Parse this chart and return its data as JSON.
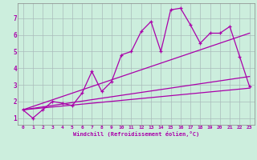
{
  "xlabel": "Windchill (Refroidissement éolien,°C)",
  "background_color": "#cceedd",
  "grid_color": "#aabbbb",
  "line_color": "#aa00aa",
  "xlim": [
    -0.5,
    23.5
  ],
  "ylim": [
    0.6,
    7.9
  ],
  "xticks": [
    0,
    1,
    2,
    3,
    4,
    5,
    6,
    7,
    8,
    9,
    10,
    11,
    12,
    13,
    14,
    15,
    16,
    17,
    18,
    19,
    20,
    21,
    22,
    23
  ],
  "yticks": [
    1,
    2,
    3,
    4,
    5,
    6,
    7
  ],
  "main_x": [
    0,
    1,
    2,
    3,
    4,
    5,
    6,
    7,
    8,
    9,
    10,
    11,
    12,
    13,
    14,
    15,
    16,
    17,
    18,
    19,
    20,
    21,
    22,
    23
  ],
  "main_y": [
    1.5,
    1.0,
    1.5,
    2.0,
    1.9,
    1.75,
    2.5,
    3.8,
    2.6,
    3.2,
    4.8,
    5.0,
    6.2,
    6.8,
    5.0,
    7.5,
    7.6,
    6.6,
    5.5,
    6.1,
    6.1,
    6.5,
    4.7,
    2.9
  ],
  "line1_x": [
    0,
    23
  ],
  "line1_y": [
    1.5,
    6.1
  ],
  "line2_x": [
    0,
    23
  ],
  "line2_y": [
    1.5,
    3.5
  ],
  "line3_x": [
    0,
    23
  ],
  "line3_y": [
    1.5,
    2.8
  ]
}
